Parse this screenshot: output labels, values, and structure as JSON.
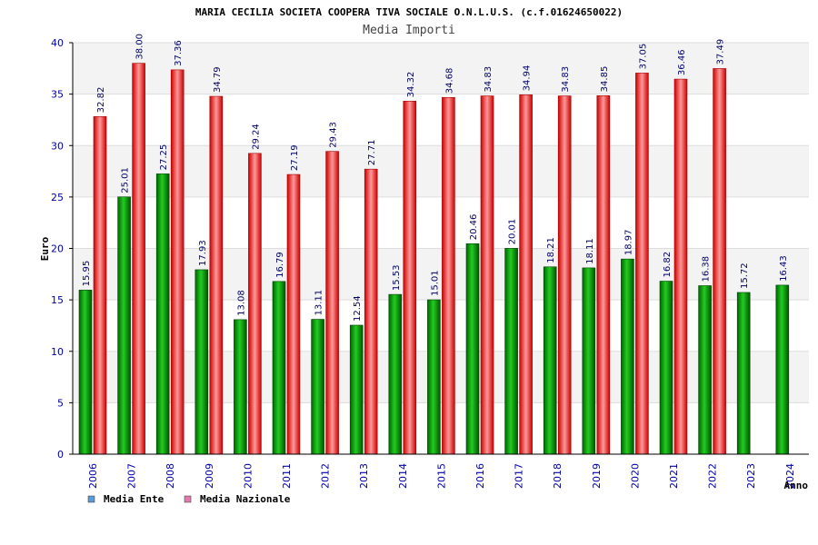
{
  "chart_data": {
    "type": "bar",
    "title": "MARIA CECILIA SOCIETA COOPERA TIVA SOCIALE O.N.L.U.S. (c.f.01624650022)",
    "subtitle": "Media Importi",
    "xlabel": "Anno",
    "ylabel": "Euro",
    "ylim": [
      0,
      40
    ],
    "yticks": [
      0,
      5,
      10,
      15,
      20,
      25,
      30,
      35,
      40
    ],
    "categories": [
      "2006",
      "2007",
      "2008",
      "2009",
      "2010",
      "2011",
      "2012",
      "2013",
      "2014",
      "2015",
      "2016",
      "2017",
      "2018",
      "2019",
      "2020",
      "2021",
      "2022",
      "2023",
      "2024"
    ],
    "series": [
      {
        "name": "Media Ente",
        "color": "#00aa00",
        "legend_color": "#5b9bd5",
        "values": [
          15.95,
          25.01,
          27.25,
          17.93,
          13.08,
          16.79,
          13.11,
          12.54,
          15.53,
          15.01,
          20.46,
          20.01,
          18.21,
          18.11,
          18.97,
          16.82,
          16.38,
          15.72,
          16.43
        ],
        "labels": [
          "15.95",
          "25.01",
          "27.25",
          "17.93",
          "13.08",
          "16.79",
          "13.11",
          "12.54",
          "15.53",
          "15.01",
          "20.46",
          "20.01",
          "18.21",
          "18.11",
          "18.97",
          "16.82",
          "16.38",
          "15.72",
          "16.43"
        ]
      },
      {
        "name": "Media Nazionale",
        "color": "#ee2222",
        "legend_color": "#e07ab0",
        "values": [
          32.82,
          38.0,
          37.36,
          34.79,
          29.24,
          27.19,
          29.43,
          27.71,
          34.32,
          34.68,
          34.83,
          34.94,
          34.83,
          34.85,
          37.05,
          36.46,
          37.49,
          null,
          null
        ],
        "labels": [
          "32.82",
          "38.00",
          "37.36",
          "34.79",
          "29.24",
          "27.19",
          "29.43",
          "27.71",
          "34.32",
          "34.68",
          "34.83",
          "34.94",
          "34.83",
          "34.85",
          "37.05",
          "36.46",
          "37.49",
          null,
          null
        ]
      }
    ],
    "grid": true,
    "legend": "bottom-left"
  }
}
